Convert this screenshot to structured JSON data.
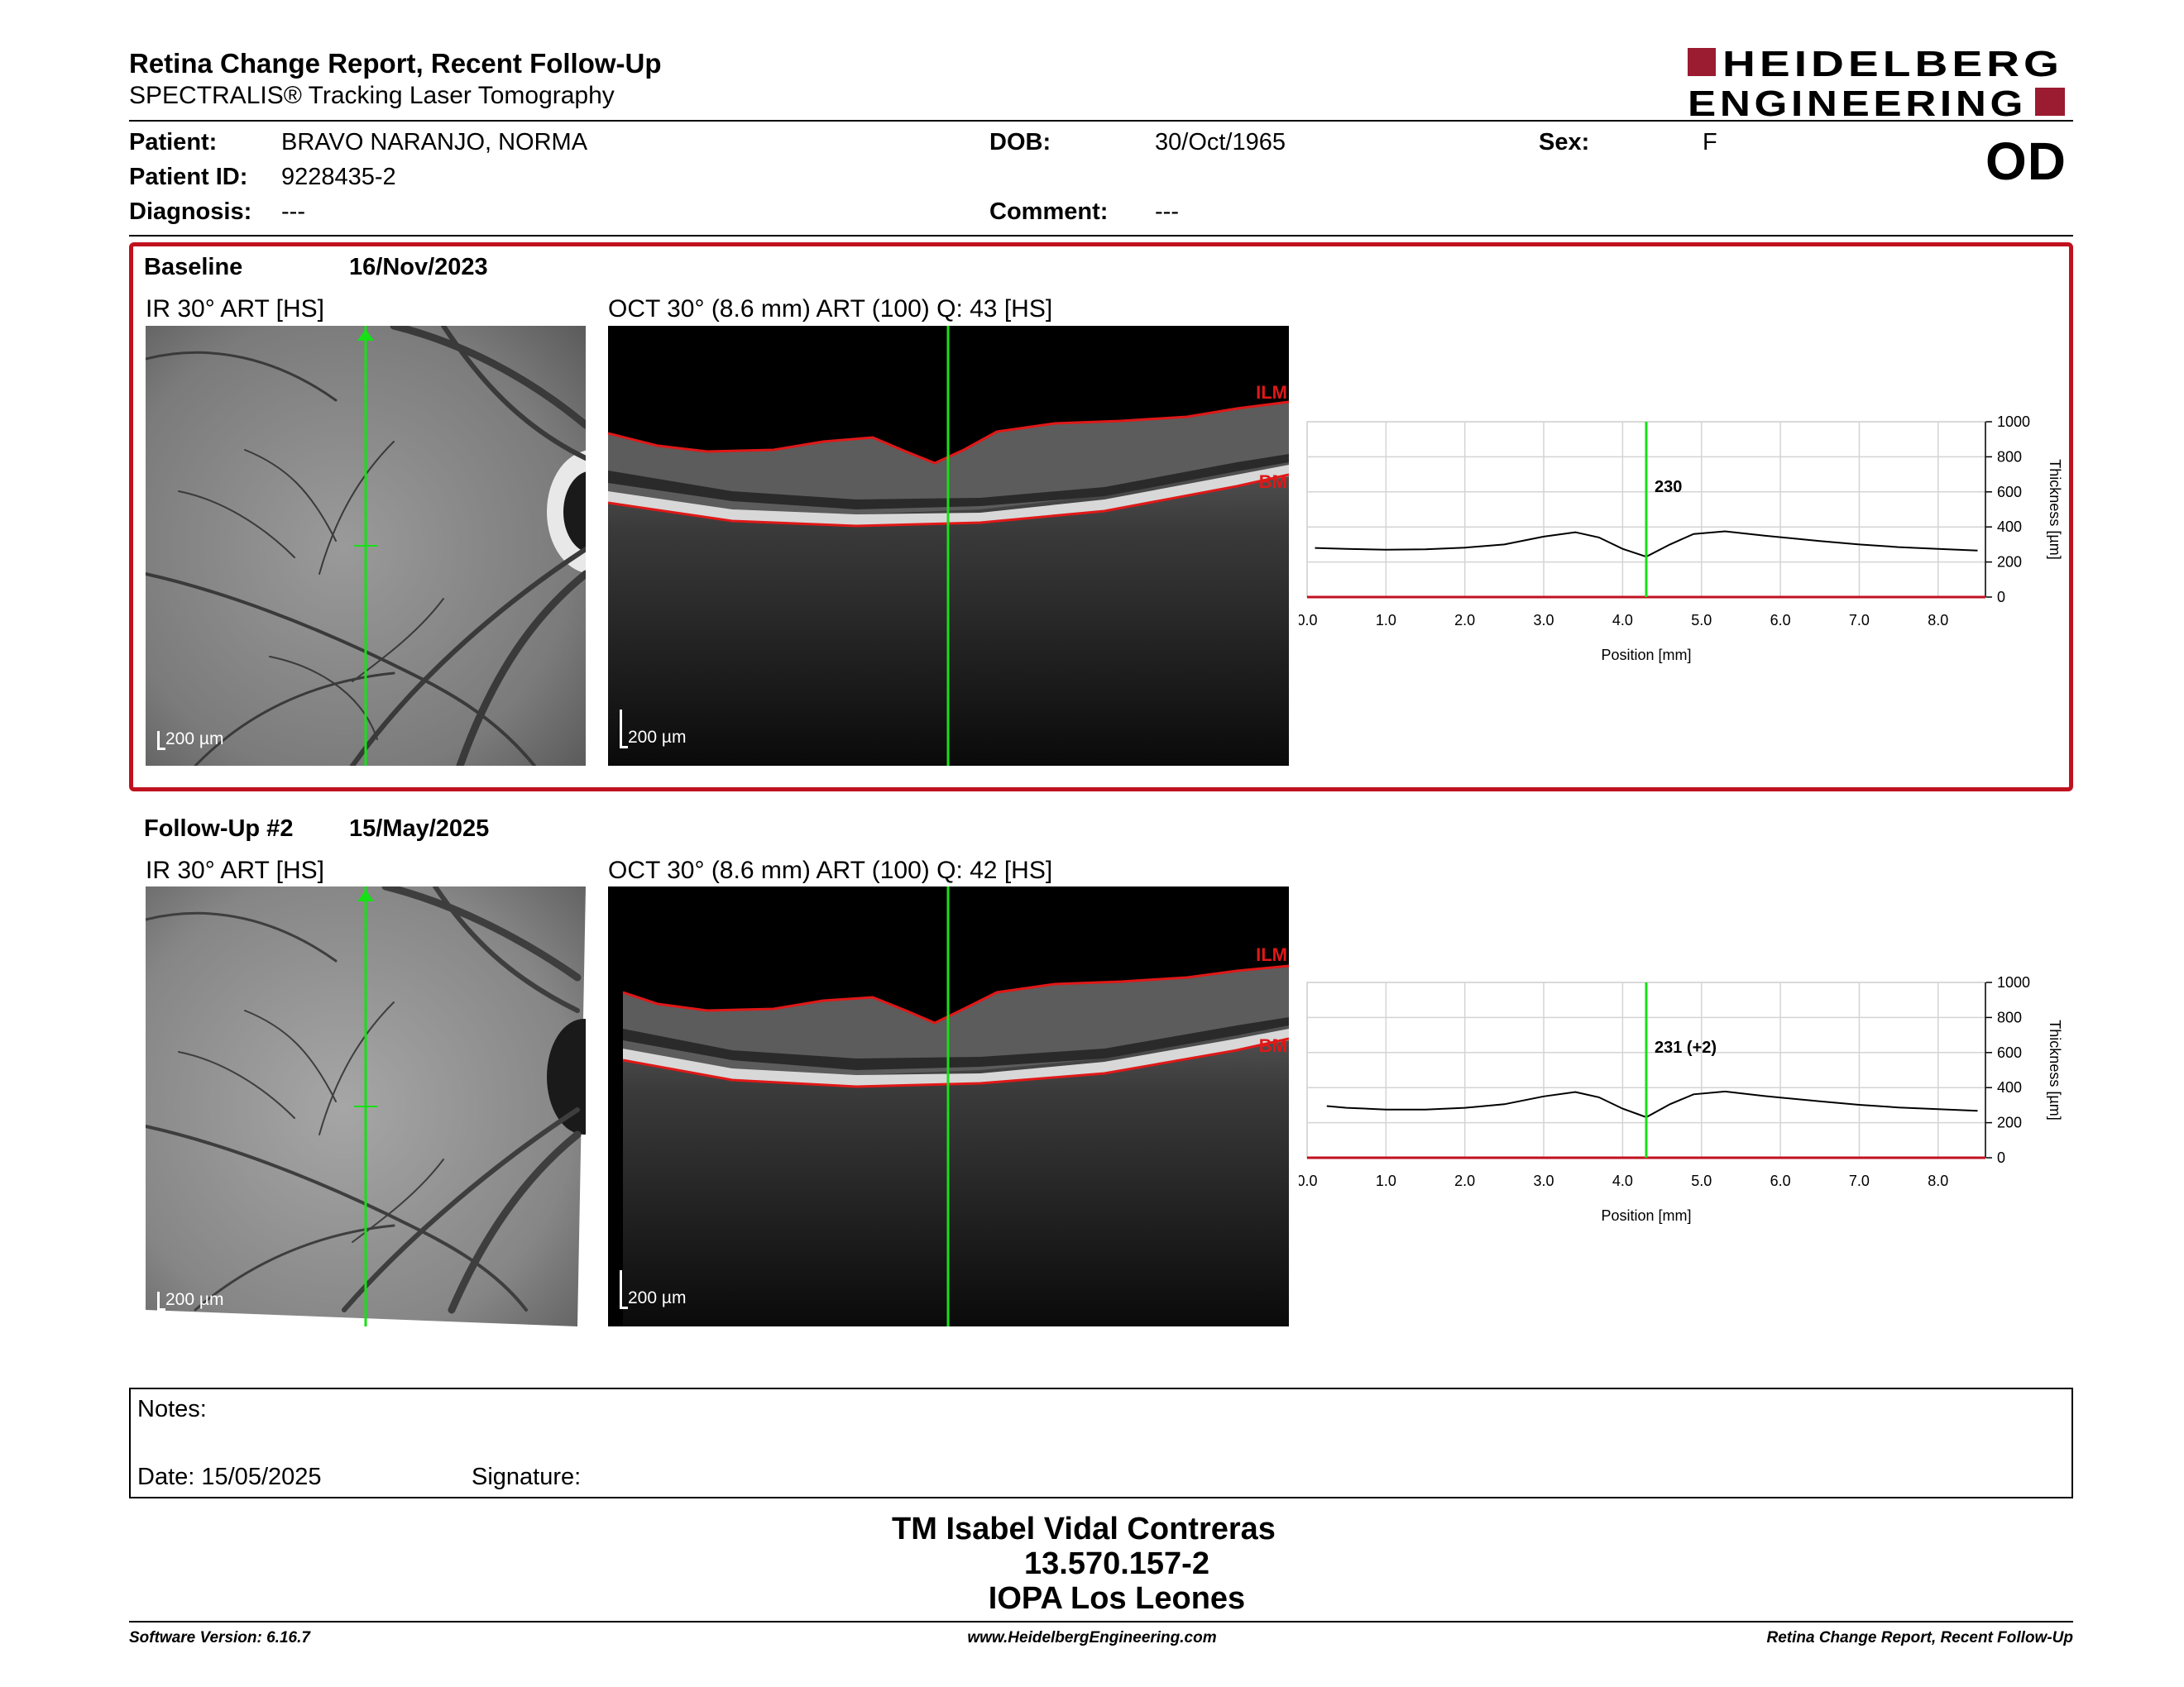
{
  "header": {
    "title": "Retina Change Report, Recent Follow-Up",
    "subtitle": "SPECTRALIS® Tracking Laser Tomography",
    "logo_line1": "HEIDELBERG",
    "logo_line2": "ENGINEERING",
    "eye": "OD"
  },
  "patient": {
    "name_label": "Patient:",
    "name": "BRAVO NARANJO, NORMA",
    "id_label": "Patient ID:",
    "id": "9228435-2",
    "diagnosis_label": "Diagnosis:",
    "diagnosis": "---",
    "dob_label": "DOB:",
    "dob": "30/Oct/1965",
    "comment_label": "Comment:",
    "comment": "---",
    "sex_label": "Sex:",
    "sex": "F"
  },
  "baseline": {
    "label": "Baseline",
    "date": "16/Nov/2023",
    "ir_title": "IR 30° ART [HS]",
    "oct_title": "OCT 30° (8.6 mm) ART (100) Q: 43 [HS]",
    "ir_scale": "200 µm",
    "oct_scale": "200 µm",
    "ilm_label": "ILM",
    "bm_label": "BM"
  },
  "followup": {
    "label": "Follow-Up #2",
    "date": "15/May/2025",
    "ir_title": "IR 30° ART [HS]",
    "oct_title": "OCT 30° (8.6 mm) ART (100) Q: 42 [HS]",
    "ir_scale": "200 µm",
    "oct_scale": "200 µm",
    "ilm_label": "ILM",
    "bm_label": "BM"
  },
  "chart_data": [
    {
      "type": "line",
      "xlabel": "Position [mm]",
      "ylabel": "Thickness [µm]",
      "xlim": [
        0,
        8.6
      ],
      "ylim": [
        0,
        1000
      ],
      "x_ticks": [
        "0.0",
        "1.0",
        "2.0",
        "3.0",
        "4.0",
        "5.0",
        "6.0",
        "7.0",
        "8.0"
      ],
      "y_ticks": [
        "0",
        "200",
        "400",
        "600",
        "800",
        "1000"
      ],
      "grid": true,
      "marker_x": 4.3,
      "marker_label": "230",
      "series": [
        {
          "x": [
            0.1,
            0.5,
            1.0,
            1.5,
            2.0,
            2.5,
            3.0,
            3.4,
            3.7,
            4.0,
            4.3,
            4.6,
            4.9,
            5.3,
            5.8,
            6.5,
            7.0,
            7.5,
            8.0,
            8.5
          ],
          "values": [
            280,
            275,
            270,
            272,
            282,
            300,
            345,
            370,
            340,
            275,
            230,
            300,
            360,
            375,
            350,
            320,
            300,
            285,
            275,
            265
          ]
        }
      ]
    },
    {
      "type": "line",
      "xlabel": "Position [mm]",
      "ylabel": "Thickness [µm]",
      "xlim": [
        0,
        8.6
      ],
      "ylim": [
        0,
        1000
      ],
      "x_ticks": [
        "0.0",
        "1.0",
        "2.0",
        "3.0",
        "4.0",
        "5.0",
        "6.0",
        "7.0",
        "8.0"
      ],
      "y_ticks": [
        "0",
        "200",
        "400",
        "600",
        "800",
        "1000"
      ],
      "grid": true,
      "marker_x": 4.3,
      "marker_label": "231 (+2)",
      "series": [
        {
          "x": [
            0.25,
            0.5,
            1.0,
            1.5,
            2.0,
            2.5,
            3.0,
            3.4,
            3.7,
            4.0,
            4.3,
            4.6,
            4.9,
            5.3,
            5.8,
            6.5,
            7.0,
            7.5,
            8.0,
            8.5
          ],
          "values": [
            295,
            285,
            275,
            275,
            285,
            305,
            350,
            375,
            345,
            280,
            231,
            305,
            362,
            378,
            352,
            322,
            302,
            287,
            277,
            268
          ]
        }
      ]
    }
  ],
  "notes": {
    "notes_label": "Notes:",
    "date_label": "Date: 15/05/2025",
    "signature_label": "Signature:"
  },
  "signature": {
    "line1": "TM Isabel Vidal Contreras",
    "line2": "13.570.157-2",
    "line3": "IOPA Los Leones"
  },
  "footer": {
    "left": "Software Version: 6.16.7",
    "center": "www.HeidelbergEngineering.com",
    "right": "Retina Change Report, Recent Follow-Up"
  },
  "colors": {
    "brand": "#9b1b30",
    "frame": "#c0111f",
    "scan_line": "#16e016",
    "segmentation": "#e01818"
  }
}
